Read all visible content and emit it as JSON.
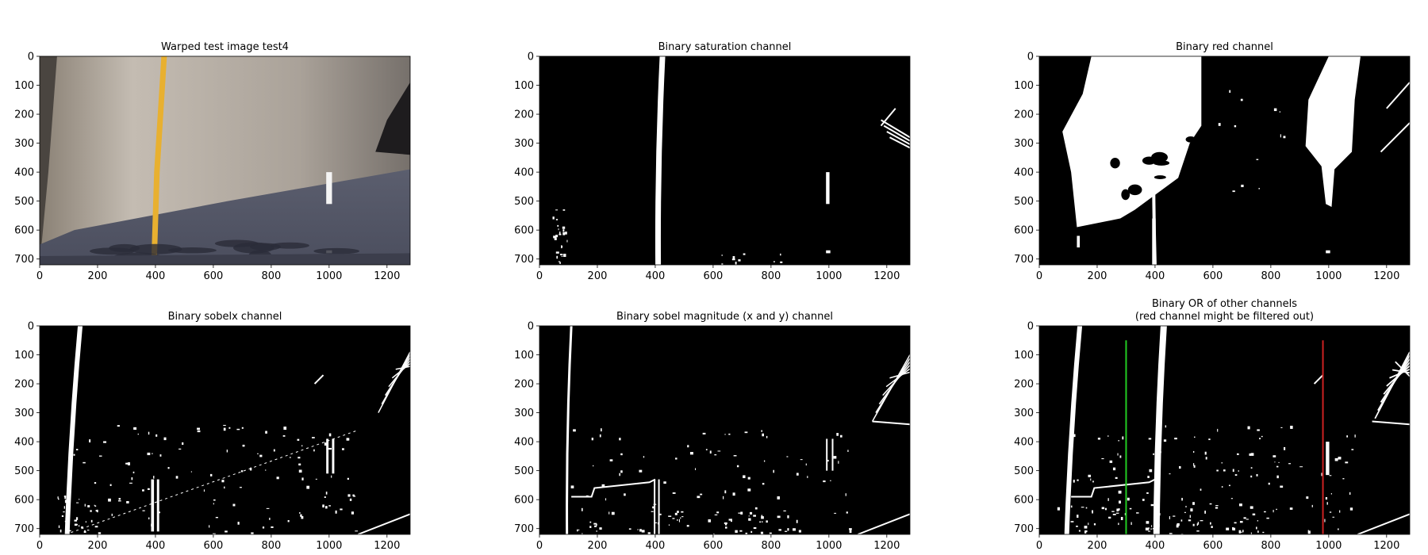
{
  "figure": {
    "panels": [
      {
        "title_lines": [
          "Warped test image test4"
        ],
        "kind": "photo",
        "x_ticks": [
          0,
          200,
          400,
          600,
          800,
          1000,
          1200
        ],
        "y_ticks": [
          0,
          100,
          200,
          300,
          400,
          500,
          600,
          700
        ],
        "x_range": [
          0,
          1280
        ],
        "y_range": [
          720,
          0
        ]
      },
      {
        "title_lines": [
          "Binary saturation channel"
        ],
        "kind": "saturation",
        "x_ticks": [
          0,
          200,
          400,
          600,
          800,
          1000,
          1200
        ],
        "y_ticks": [
          0,
          100,
          200,
          300,
          400,
          500,
          600,
          700
        ],
        "x_range": [
          0,
          1280
        ],
        "y_range": [
          720,
          0
        ]
      },
      {
        "title_lines": [
          "Binary red channel"
        ],
        "kind": "red",
        "x_ticks": [
          0,
          200,
          400,
          600,
          800,
          1000,
          1200
        ],
        "y_ticks": [
          0,
          100,
          200,
          300,
          400,
          500,
          600,
          700
        ],
        "x_range": [
          0,
          1280
        ],
        "y_range": [
          720,
          0
        ]
      },
      {
        "title_lines": [
          "Binary sobelx channel"
        ],
        "kind": "sobelx",
        "x_ticks": [
          0,
          200,
          400,
          600,
          800,
          1000,
          1200
        ],
        "y_ticks": [
          0,
          100,
          200,
          300,
          400,
          500,
          600,
          700
        ],
        "x_range": [
          0,
          1280
        ],
        "y_range": [
          720,
          0
        ]
      },
      {
        "title_lines": [
          "Binary sobel magnitude (x and y) channel"
        ],
        "kind": "sobelmag",
        "x_ticks": [
          0,
          200,
          400,
          600,
          800,
          1000,
          1200
        ],
        "y_ticks": [
          0,
          100,
          200,
          300,
          400,
          500,
          600,
          700
        ],
        "x_range": [
          0,
          1280
        ],
        "y_range": [
          720,
          0
        ]
      },
      {
        "title_lines": [
          "Binary OR of other channels",
          "(red channel might be filtered out)"
        ],
        "kind": "or",
        "x_ticks": [
          0,
          200,
          400,
          600,
          800,
          1000,
          1200
        ],
        "y_ticks": [
          0,
          100,
          200,
          300,
          400,
          500,
          600,
          700
        ],
        "x_range": [
          0,
          1280
        ],
        "y_range": [
          720,
          0
        ],
        "vertical_markers": [
          {
            "x": 300,
            "y_from": 50,
            "y_to": 720,
            "color": "#22cc22"
          },
          {
            "x": 980,
            "y_from": 50,
            "y_to": 720,
            "color": "#cc2222"
          }
        ]
      }
    ]
  }
}
